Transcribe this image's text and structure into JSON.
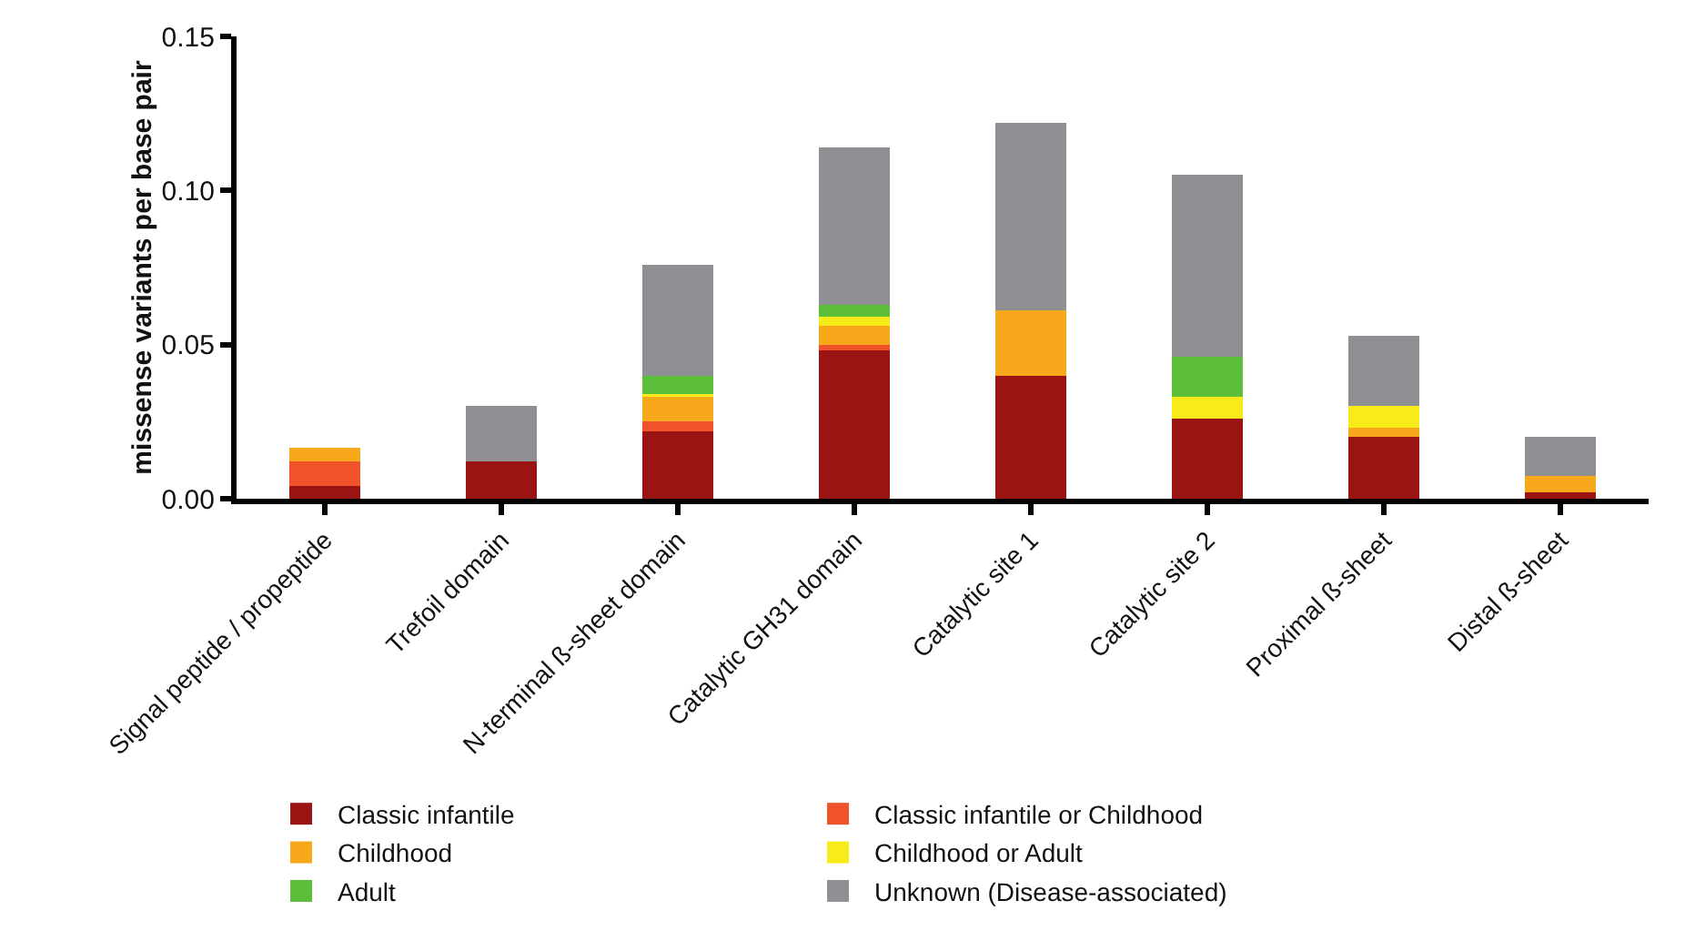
{
  "chart_data": {
    "type": "bar",
    "stacked": true,
    "ylabel": "missense variants per base pair",
    "categories": [
      "Signal peptide / propeptide",
      "Trefoil domain",
      "N-terminal ß-sheet domain",
      "Catalytic GH31 domain",
      "Catalytic site 1",
      "Catalytic site 2",
      "Proximal ß-sheet",
      "Distal ß-sheet"
    ],
    "series": [
      {
        "name": "Classic infantile",
        "color": "#9b1414",
        "values": [
          0.004,
          0.012,
          0.022,
          0.048,
          0.04,
          0.026,
          0.02,
          0.002
        ]
      },
      {
        "name": "Classic infantile or Childhood",
        "color": "#f0522a",
        "values": [
          0.008,
          0,
          0.003,
          0.002,
          0,
          0,
          0,
          0
        ]
      },
      {
        "name": "Childhood",
        "color": "#f7a81b",
        "values": [
          0.0045,
          0,
          0.008,
          0.006,
          0.021,
          0,
          0.003,
          0.0055
        ]
      },
      {
        "name": "Childhood or Adult",
        "color": "#f7ec19",
        "values": [
          0,
          0,
          0.001,
          0.003,
          0,
          0.007,
          0.007,
          0
        ]
      },
      {
        "name": "Adult",
        "color": "#5cbf3a",
        "values": [
          0,
          0,
          0.006,
          0.004,
          0,
          0.013,
          0,
          0
        ]
      },
      {
        "name": "Unknown (Disease-associated)",
        "color": "#8e9093",
        "values": [
          0,
          0.018,
          0.036,
          0.051,
          0.061,
          0.059,
          0.023,
          0.0125
        ]
      }
    ],
    "ylim": [
      0,
      0.15
    ],
    "yticks": [
      {
        "value": 0,
        "label": "0.00"
      },
      {
        "value": 0.05,
        "label": "0.05"
      },
      {
        "value": 0.1,
        "label": "0.10"
      },
      {
        "value": 0.15,
        "label": "0.15"
      }
    ],
    "grid": false,
    "legend": "bottom"
  }
}
